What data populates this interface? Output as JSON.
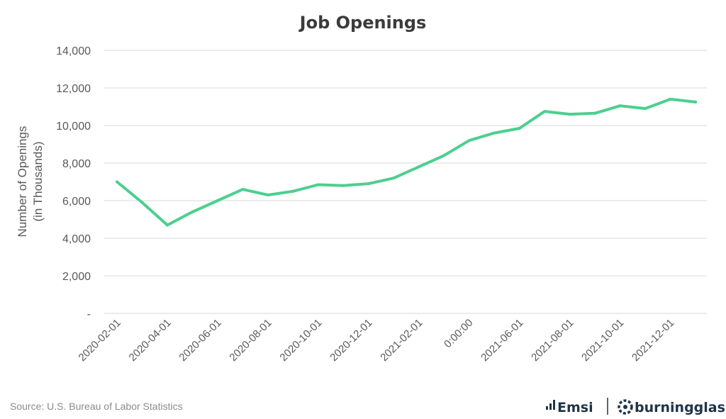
{
  "chart_data": {
    "type": "line",
    "title": "Job Openings",
    "ylabel_lines": [
      "Number of Openings",
      "(in Thousands)"
    ],
    "xlabel": "",
    "ylim": [
      0,
      14000
    ],
    "y_ticks": [
      0,
      2000,
      4000,
      6000,
      8000,
      10000,
      12000,
      14000
    ],
    "y_tick_labels": [
      "-",
      "2,000",
      "4,000",
      "6,000",
      "8,000",
      "10,000",
      "12,000",
      "14,000"
    ],
    "x_tick_labels": [
      "2020-02-01",
      "2020-04-01",
      "2020-06-01",
      "2020-08-01",
      "2020-10-01",
      "2020-12-01",
      "2021-02-01",
      "0:00:00",
      "2021-06-01",
      "2021-08-01",
      "2021-10-01",
      "2021-12-01"
    ],
    "x": [
      "2020-02-01",
      "2020-03-01",
      "2020-04-01",
      "2020-05-01",
      "2020-06-01",
      "2020-07-01",
      "2020-08-01",
      "2020-09-01",
      "2020-10-01",
      "2020-11-01",
      "2020-12-01",
      "2021-01-01",
      "2021-02-01",
      "2021-03-01",
      "2021-04-01",
      "2021-05-01",
      "2021-06-01",
      "2021-07-01",
      "2021-08-01",
      "2021-09-01",
      "2021-10-01",
      "2021-11-01",
      "2021-12-01",
      "2022-01-01"
    ],
    "series": [
      {
        "color": "#4ccf8f",
        "values": [
          7000,
          5900,
          4700,
          5400,
          6000,
          6600,
          6300,
          6500,
          6850,
          6800,
          6900,
          7200,
          7800,
          8400,
          9200,
          9600,
          9850,
          10750,
          10600,
          10650,
          11050,
          10900,
          11400,
          11250
        ]
      }
    ],
    "grid": true,
    "legend": "none"
  },
  "footer": {
    "source": "Source:  U.S. Bureau of Labor Statistics",
    "brand_left": "Emsi",
    "brand_right": "burningglass"
  },
  "icons": [
    "emsi-bars-icon",
    "burningglass-logo-icon"
  ],
  "colors": {
    "line": "#4ccf8f",
    "brand": "#1f3448"
  }
}
